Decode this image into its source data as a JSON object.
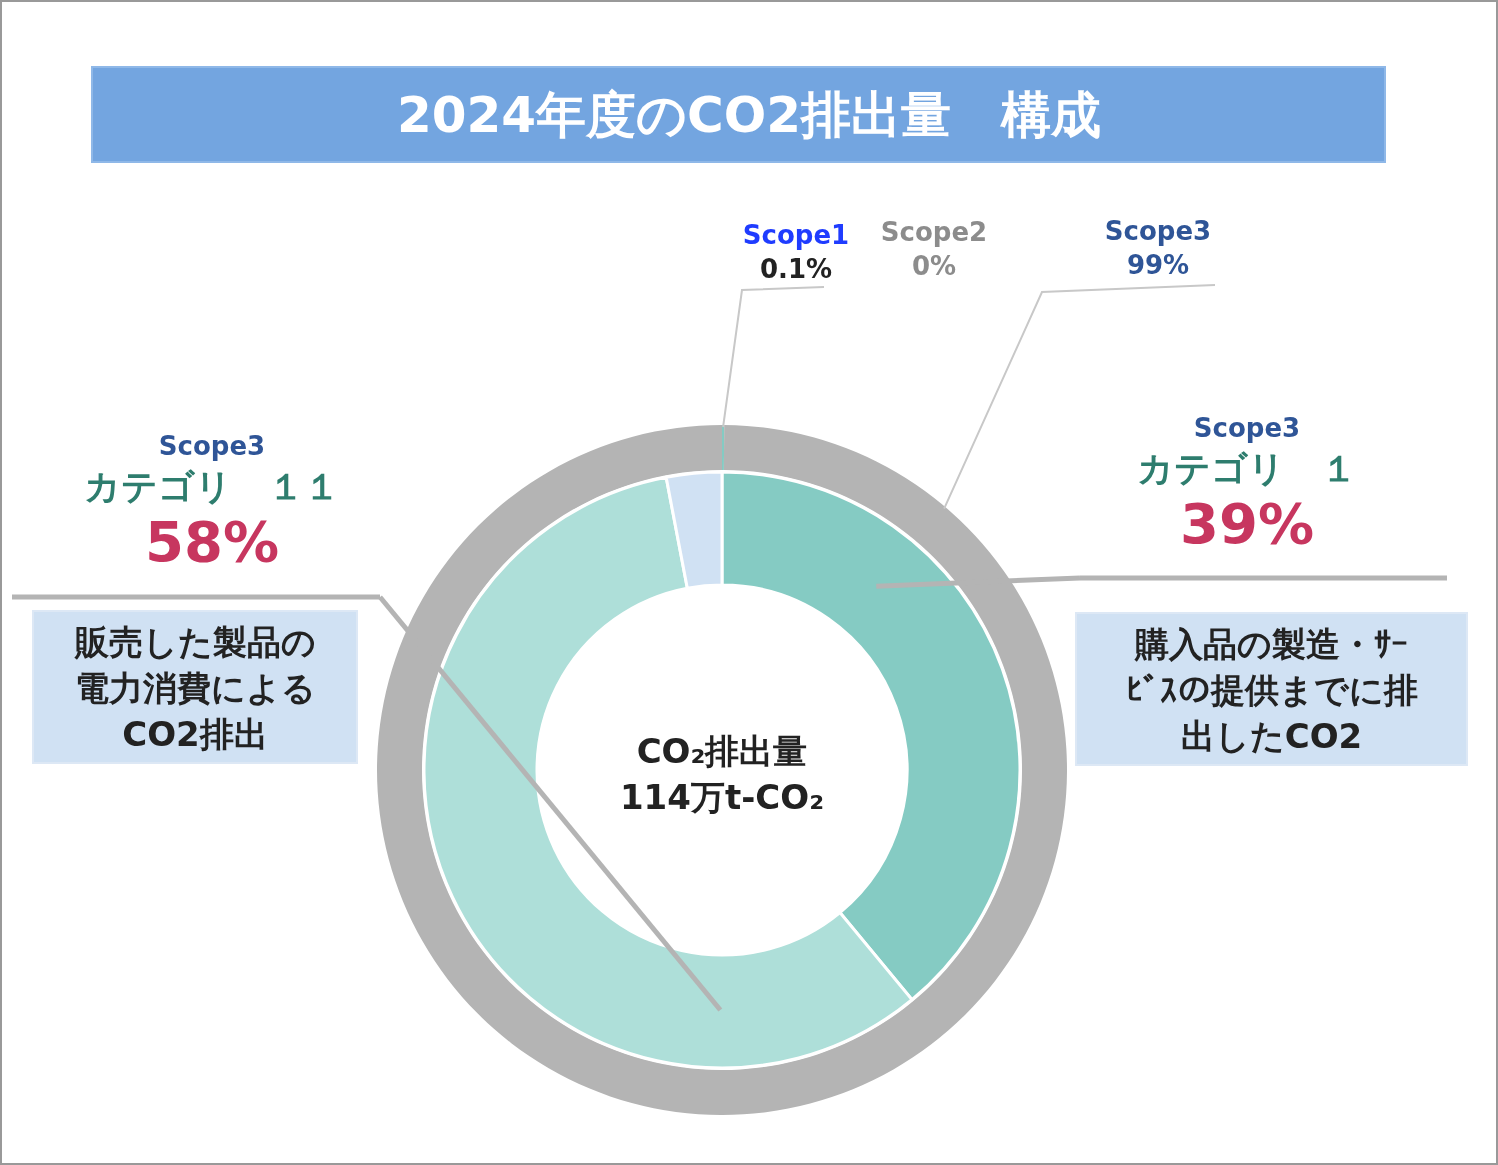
{
  "chart_data": [
    {
      "type": "donut",
      "title": "2024年度のCO2排出量　構成",
      "categories": [
        "Scope1",
        "Scope2",
        "Scope3"
      ],
      "values": [
        0.1,
        0,
        99
      ],
      "value_labels": [
        "0.1%",
        "0%",
        "99%"
      ],
      "colors": [
        "#84cbc3",
        "#d9d9d9",
        "#b4b4b4"
      ],
      "annotations": [
        "CO₂排出量 114万t-CO₂"
      ]
    },
    {
      "type": "donut",
      "categories": [
        "Scope3 カテゴリ　１",
        "Scope3 カテゴリ　１１",
        null
      ],
      "values": [
        39,
        58,
        3
      ],
      "value_labels": [
        "39%",
        "58%",
        null
      ],
      "colors": [
        "#85cbc3",
        "#aedfd9",
        "#d0e1f3"
      ],
      "annotations": [
        "購入品の製造・ｻｰﾋﾞｽの提供までに排出したCO2",
        "販売した製品の電力消費によるCO2排出"
      ]
    }
  ]
}
